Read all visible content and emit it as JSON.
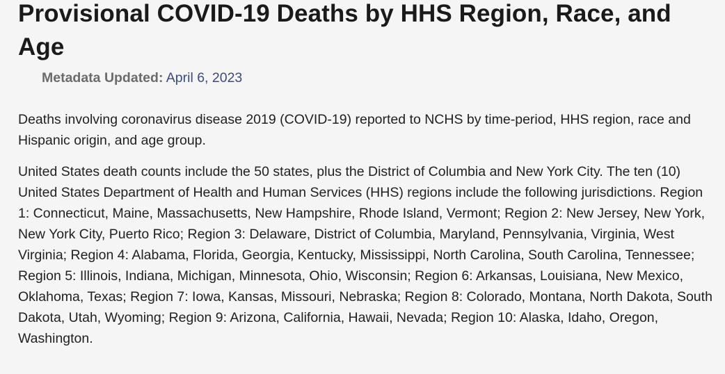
{
  "page": {
    "title": "Provisional COVID-19 Deaths by HHS Region, Race, and Age",
    "metadata": {
      "label": "Metadata Updated:",
      "value": "April 6, 2023"
    },
    "description": [
      "Deaths involving coronavirus disease 2019 (COVID-19) reported to NCHS by time-period, HHS region, race and Hispanic origin, and age group.",
      "United States death counts include the 50 states, plus the District of Columbia and New York City. The ten (10) United States Department of Health and Human Services (HHS) regions include the following jurisdictions. Region 1: Connecticut, Maine, Massachusetts, New Hampshire, Rhode Island, Vermont; Region 2: New Jersey, New York, New York City, Puerto Rico; Region 3: Delaware, District of Columbia, Maryland, Pennsylvania, Virginia, West Virginia; Region 4: Alabama, Florida, Georgia, Kentucky, Mississippi, North Carolina, South Carolina, Tennessee; Region 5: Illinois, Indiana, Michigan, Minnesota, Ohio, Wisconsin; Region 6: Arkansas, Louisiana, New Mexico, Oklahoma, Texas; Region 7: Iowa, Kansas, Missouri, Nebraska; Region 8: Colorado, Montana, North Dakota, South Dakota, Utah, Wyoming; Region 9: Arizona, California, Hawaii, Nevada; Region 10: Alaska, Idaho, Oregon, Washington."
    ]
  }
}
